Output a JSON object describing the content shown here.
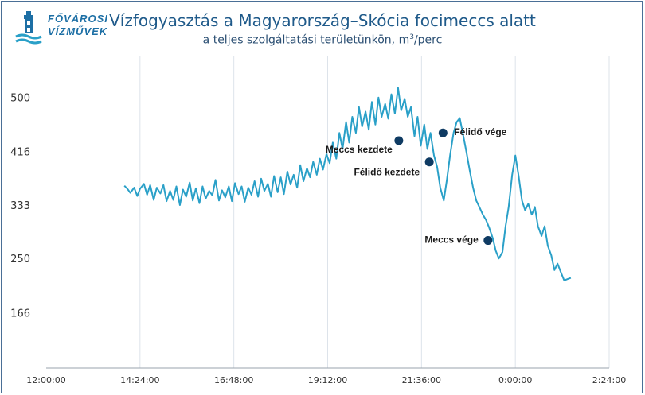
{
  "logo": {
    "line1": "FŐVÁROSI",
    "line2": "VÍZMŰVEK",
    "icon": "water-tower-icon"
  },
  "chart_data": {
    "type": "line",
    "title": "Vízfogyasztás a Magyarország–Skócia focimeccs alatt",
    "subtitle_prefix": "a teljes szolgáltatási területünkön, m",
    "subtitle_sup": "3",
    "subtitle_suffix": "/perc",
    "xlabel": "",
    "ylabel": "",
    "y_ticks": [
      500,
      416,
      333,
      250,
      166
    ],
    "x_ticks": [
      "12:00:00",
      "14:24:00",
      "16:48:00",
      "19:12:00",
      "21:36:00",
      "0:00:00",
      "2:24:00"
    ],
    "x_tick_hours": [
      12.0,
      14.4,
      16.8,
      19.2,
      21.6,
      24.0,
      26.4
    ],
    "xlim_hours": [
      12.0,
      26.4
    ],
    "ylim": [
      80,
      565
    ],
    "grid": "vertical",
    "color": "#2aa0c8",
    "series": [
      {
        "points": [
          [
            14.0,
            363
          ],
          [
            14.08,
            358
          ],
          [
            14.15,
            352
          ],
          [
            14.25,
            360
          ],
          [
            14.33,
            347
          ],
          [
            14.4,
            358
          ],
          [
            14.5,
            366
          ],
          [
            14.58,
            349
          ],
          [
            14.66,
            364
          ],
          [
            14.75,
            341
          ],
          [
            14.83,
            360
          ],
          [
            14.92,
            351
          ],
          [
            15.0,
            364
          ],
          [
            15.08,
            339
          ],
          [
            15.17,
            355
          ],
          [
            15.25,
            341
          ],
          [
            15.33,
            362
          ],
          [
            15.42,
            333
          ],
          [
            15.5,
            357
          ],
          [
            15.58,
            346
          ],
          [
            15.67,
            368
          ],
          [
            15.75,
            340
          ],
          [
            15.83,
            359
          ],
          [
            15.92,
            336
          ],
          [
            16.0,
            362
          ],
          [
            16.08,
            343
          ],
          [
            16.17,
            355
          ],
          [
            16.25,
            348
          ],
          [
            16.33,
            372
          ],
          [
            16.42,
            340
          ],
          [
            16.5,
            356
          ],
          [
            16.58,
            345
          ],
          [
            16.67,
            362
          ],
          [
            16.75,
            339
          ],
          [
            16.83,
            367
          ],
          [
            16.92,
            350
          ],
          [
            17.0,
            362
          ],
          [
            17.08,
            338
          ],
          [
            17.17,
            360
          ],
          [
            17.25,
            349
          ],
          [
            17.33,
            370
          ],
          [
            17.42,
            346
          ],
          [
            17.5,
            374
          ],
          [
            17.58,
            355
          ],
          [
            17.67,
            366
          ],
          [
            17.75,
            346
          ],
          [
            17.83,
            378
          ],
          [
            17.92,
            353
          ],
          [
            18.0,
            376
          ],
          [
            18.08,
            350
          ],
          [
            18.17,
            385
          ],
          [
            18.25,
            365
          ],
          [
            18.33,
            380
          ],
          [
            18.42,
            360
          ],
          [
            18.5,
            395
          ],
          [
            18.58,
            370
          ],
          [
            18.67,
            390
          ],
          [
            18.75,
            376
          ],
          [
            18.83,
            400
          ],
          [
            18.92,
            380
          ],
          [
            19.0,
            405
          ],
          [
            19.08,
            388
          ],
          [
            19.17,
            412
          ],
          [
            19.25,
            398
          ],
          [
            19.33,
            430
          ],
          [
            19.42,
            405
          ],
          [
            19.5,
            445
          ],
          [
            19.58,
            420
          ],
          [
            19.67,
            462
          ],
          [
            19.75,
            430
          ],
          [
            19.83,
            470
          ],
          [
            19.92,
            445
          ],
          [
            20.0,
            485
          ],
          [
            20.08,
            455
          ],
          [
            20.17,
            478
          ],
          [
            20.25,
            450
          ],
          [
            20.33,
            493
          ],
          [
            20.42,
            458
          ],
          [
            20.5,
            500
          ],
          [
            20.58,
            470
          ],
          [
            20.67,
            490
          ],
          [
            20.75,
            467
          ],
          [
            20.83,
            505
          ],
          [
            20.92,
            475
          ],
          [
            21.0,
            515
          ],
          [
            21.08,
            480
          ],
          [
            21.17,
            498
          ],
          [
            21.25,
            470
          ],
          [
            21.33,
            485
          ],
          [
            21.42,
            440
          ],
          [
            21.5,
            470
          ],
          [
            21.58,
            425
          ],
          [
            21.67,
            458
          ],
          [
            21.75,
            420
          ],
          [
            21.83,
            445
          ],
          [
            21.92,
            410
          ],
          [
            22.0,
            392
          ],
          [
            22.08,
            360
          ],
          [
            22.17,
            340
          ],
          [
            22.25,
            372
          ],
          [
            22.33,
            410
          ],
          [
            22.42,
            445
          ],
          [
            22.5,
            462
          ],
          [
            22.58,
            468
          ],
          [
            22.67,
            440
          ],
          [
            22.75,
            415
          ],
          [
            22.83,
            388
          ],
          [
            22.92,
            360
          ],
          [
            23.0,
            340
          ],
          [
            23.08,
            330
          ],
          [
            23.17,
            318
          ],
          [
            23.25,
            310
          ],
          [
            23.33,
            298
          ],
          [
            23.42,
            282
          ],
          [
            23.5,
            262
          ],
          [
            23.58,
            250
          ],
          [
            23.67,
            260
          ],
          [
            23.75,
            300
          ],
          [
            23.83,
            330
          ],
          [
            23.92,
            380
          ],
          [
            24.0,
            410
          ],
          [
            24.08,
            380
          ],
          [
            24.17,
            340
          ],
          [
            24.25,
            325
          ],
          [
            24.33,
            335
          ],
          [
            24.42,
            318
          ],
          [
            24.5,
            330
          ],
          [
            24.58,
            300
          ],
          [
            24.67,
            285
          ],
          [
            24.75,
            300
          ],
          [
            24.83,
            270
          ],
          [
            24.92,
            255
          ],
          [
            25.0,
            232
          ],
          [
            25.08,
            242
          ],
          [
            25.17,
            228
          ],
          [
            25.25,
            216
          ],
          [
            25.33,
            218
          ],
          [
            25.42,
            220
          ]
        ]
      }
    ],
    "annotations": [
      {
        "label": "Meccs kezdete",
        "x": 21.02,
        "y": 433
      },
      {
        "label": "Félidő kezdete",
        "x": 21.8,
        "y": 400
      },
      {
        "label": "Félidő vége",
        "x": 22.15,
        "y": 445
      },
      {
        "label": "Meccs vége",
        "x": 23.3,
        "y": 278
      }
    ]
  }
}
